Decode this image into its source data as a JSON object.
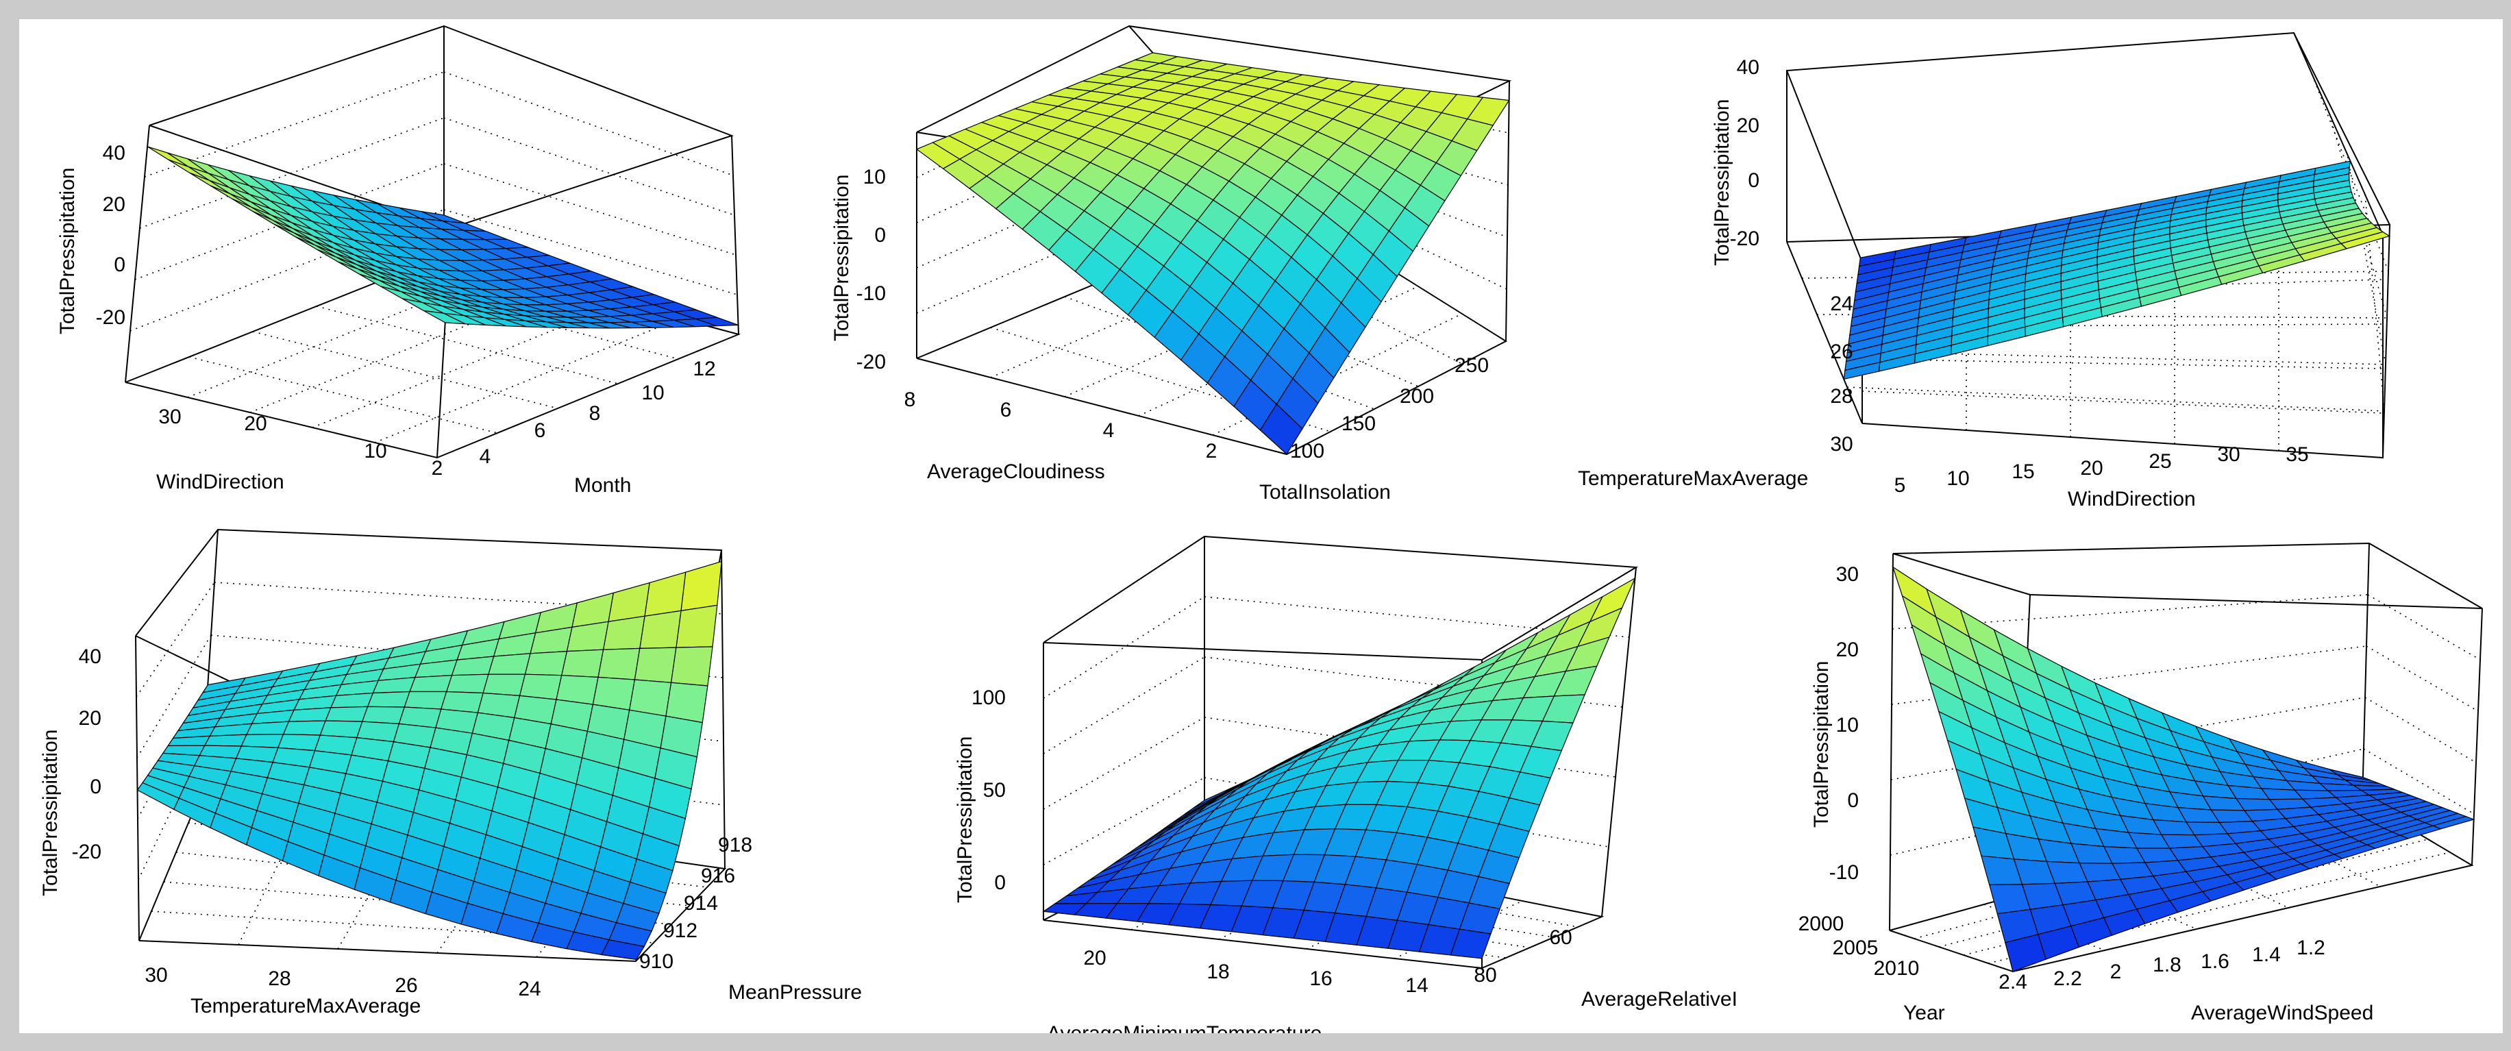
{
  "chart_data": [
    {
      "type": "surface3d",
      "zlabel": "TotalPressipitation",
      "xlabel": "WindDirection",
      "ylabel": "Month",
      "zticks": [
        "40",
        "20",
        "0",
        "-20"
      ],
      "xticks": [
        "30",
        "20",
        "10"
      ],
      "yticks": [
        "2",
        "4",
        "6",
        "8",
        "10",
        "12"
      ],
      "corner_z": {
        "x0y0": 48,
        "x1y0": 20,
        "x0y1": -15,
        "x1y1": -26
      },
      "zlim": [
        -30,
        55
      ],
      "curve": 0.35
    },
    {
      "type": "surface3d",
      "zlabel": "TotalPressipitation",
      "xlabel": "AverageCloudiness",
      "ylabel": "TotalInsolation",
      "zticks": [
        "10",
        "0",
        "-10",
        "-20"
      ],
      "xticks": [
        "8",
        "6",
        "4",
        "2"
      ],
      "yticks": [
        "100",
        "150",
        "200",
        "250"
      ],
      "corner_z": {
        "x0y0": 15,
        "x1y0": -22,
        "x0y1": 12,
        "x1y1": 15
      },
      "zlim": [
        -22,
        18
      ],
      "curve": 0.55
    },
    {
      "type": "surface3d",
      "zlabel": "TotalPressipitation",
      "xlabel": "TemperatureMaxAverage",
      "ylabel": "WindDirection",
      "zticks": [
        "40",
        "20",
        "0",
        "-20"
      ],
      "xticks": [
        "24",
        "26",
        "28",
        "30"
      ],
      "yticks": [
        "5",
        "10",
        "15",
        "20",
        "25",
        "30",
        "35"
      ],
      "corner_z": {
        "x0y0": -20,
        "x1y0": -38,
        "x0y1": 38,
        "x1y1": -10
      },
      "zlim": [
        -40,
        42
      ],
      "curve": 0.15
    },
    {
      "type": "surface3d",
      "zlabel": "TotalPressipitation",
      "xlabel": "TemperatureMaxAverage",
      "ylabel": "MeanPressure",
      "zticks": [
        "40",
        "20",
        "0",
        "-20"
      ],
      "xticks": [
        "30",
        "28",
        "26",
        "24"
      ],
      "yticks": [
        "910",
        "912",
        "914",
        "916",
        "918"
      ],
      "corner_z": {
        "x0y0": 12,
        "x1y0": -28,
        "x0y1": 5,
        "x1y1": 52
      },
      "zlim": [
        -30,
        55
      ],
      "curve": 0.5
    },
    {
      "type": "surface3d",
      "zlabel": "TotalPressipitation",
      "xlabel": "AverageMinimumTemperature",
      "ylabel": "AverageRelativeI",
      "zticks": [
        "100",
        "50",
        "0"
      ],
      "xticks": [
        "20",
        "18",
        "16",
        "14"
      ],
      "yticks": [
        "80",
        "60"
      ],
      "corner_z": {
        "x0y0": -15,
        "x1y0": -15,
        "x0y1": 0,
        "x1y1": 135
      },
      "zlim": [
        -20,
        140
      ],
      "curve": 0.7
    },
    {
      "type": "surface3d",
      "zlabel": "TotalPressipitation",
      "xlabel": "Year",
      "ylabel": "AverageWindSpeed",
      "zticks": [
        "30",
        "20",
        "10",
        "0",
        "-10"
      ],
      "xticks": [
        "2000",
        "2005",
        "2010"
      ],
      "yticks": [
        "2.4",
        "2.2",
        "2",
        "1.8",
        "1.6",
        "1.4",
        "1.2"
      ],
      "corner_z": {
        "x0y0": 34,
        "x1y0": -20,
        "x0y1": -15,
        "x1y1": -10
      },
      "zlim": [
        -20,
        36
      ],
      "curve": 0.35
    }
  ]
}
